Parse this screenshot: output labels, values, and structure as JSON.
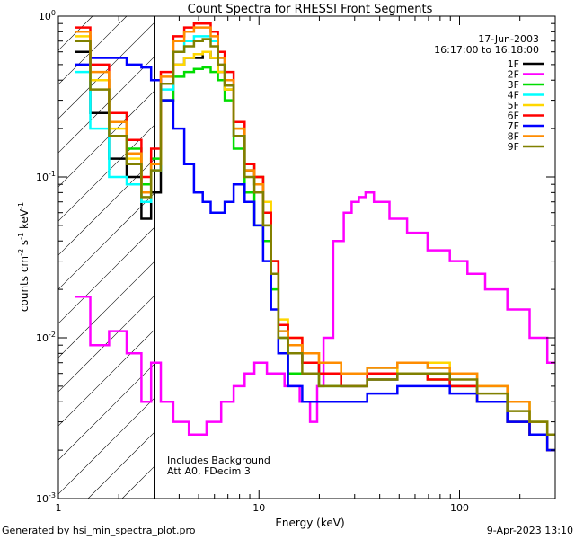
{
  "footer": {
    "generated": "Generated by hsi_min_spectra_plot.pro",
    "timestamp": "9-Apr-2023 13:10"
  },
  "chart_data": {
    "type": "line",
    "title": "Count Spectra for RHESSI Front Segments",
    "xlabel": "Energy (keV)",
    "ylabel_parts": [
      "counts cm",
      "-2",
      " s",
      "-1",
      " keV",
      "-1"
    ],
    "xscale": "log",
    "yscale": "log",
    "xlim": [
      1.0,
      300.0
    ],
    "ylim": [
      0.001,
      1.0
    ],
    "x_ticks": [
      {
        "v": 1,
        "label": "1"
      },
      {
        "v": 10,
        "label": "10"
      },
      {
        "v": 100,
        "label": "100"
      }
    ],
    "y_ticks": [
      {
        "v": 0.001,
        "label": "10",
        "exp": "-3"
      },
      {
        "v": 0.01,
        "label": "10",
        "exp": "-2"
      },
      {
        "v": 0.1,
        "label": "10",
        "exp": "-1"
      },
      {
        "v": 1,
        "label": "10",
        "exp": "0"
      }
    ],
    "annotations": {
      "date": "17-Jun-2003",
      "time_range": "16:17:00 to 16:18:00",
      "background_note": "Includes Background",
      "atten_note": "Att A0, FDecim 3"
    },
    "hatched_region_max_energy": 3.0,
    "legend_position": "top-right",
    "series": [
      {
        "name": "1F",
        "color": "#000000",
        "x": [
          1.3,
          1.6,
          2.0,
          2.4,
          2.8,
          3.0,
          3.5,
          4.0,
          4.5,
          5.0,
          5.5,
          6.0,
          6.5,
          7.0,
          8.0,
          9.0,
          10,
          11,
          12,
          13,
          15,
          18,
          22,
          30,
          40,
          60,
          80,
          100,
          150,
          200,
          250,
          300
        ],
        "y": [
          0.6,
          0.25,
          0.13,
          0.1,
          0.055,
          0.08,
          0.3,
          0.5,
          0.55,
          0.55,
          0.6,
          0.55,
          0.45,
          0.35,
          0.18,
          0.11,
          0.1,
          0.06,
          0.03,
          0.012,
          0.009,
          0.007,
          0.006,
          0.005,
          0.0055,
          0.006,
          0.006,
          0.005,
          0.004,
          0.003,
          0.0025,
          0.002
        ]
      },
      {
        "name": "2F",
        "color": "#ff00ff",
        "x": [
          1.3,
          1.6,
          2.0,
          2.4,
          2.8,
          3.0,
          3.5,
          4.0,
          5.0,
          6.0,
          7.0,
          8.0,
          9.0,
          10,
          12,
          15,
          17,
          19,
          20,
          22,
          25,
          28,
          30,
          33,
          35,
          40,
          50,
          60,
          80,
          100,
          120,
          150,
          200,
          250,
          300
        ],
        "y": [
          0.018,
          0.009,
          0.011,
          0.008,
          0.004,
          0.007,
          0.004,
          0.003,
          0.0025,
          0.003,
          0.004,
          0.005,
          0.006,
          0.007,
          0.006,
          0.005,
          0.004,
          0.003,
          0.005,
          0.01,
          0.04,
          0.06,
          0.07,
          0.075,
          0.08,
          0.07,
          0.055,
          0.045,
          0.035,
          0.03,
          0.025,
          0.02,
          0.015,
          0.01,
          0.007
        ]
      },
      {
        "name": "3F",
        "color": "#00dd00",
        "x": [
          1.3,
          1.6,
          2.0,
          2.4,
          2.8,
          3.0,
          3.5,
          4.0,
          4.5,
          5.0,
          5.5,
          6.0,
          6.5,
          7.0,
          8.0,
          9.0,
          10,
          11,
          12,
          13,
          15,
          18,
          22,
          30,
          40,
          60,
          80,
          100,
          150,
          200,
          250,
          300
        ],
        "y": [
          0.7,
          0.4,
          0.25,
          0.15,
          0.09,
          0.13,
          0.3,
          0.42,
          0.45,
          0.47,
          0.48,
          0.45,
          0.4,
          0.3,
          0.15,
          0.08,
          0.05,
          0.04,
          0.02,
          0.01,
          0.006,
          0.006,
          0.005,
          0.005,
          0.006,
          0.006,
          0.0055,
          0.005,
          0.004,
          0.003,
          0.0025,
          0.002
        ]
      },
      {
        "name": "4F",
        "color": "#00ffff",
        "x": [
          1.3,
          1.6,
          2.0,
          2.4,
          2.8,
          3.0,
          3.5,
          4.0,
          4.5,
          5.0,
          5.5,
          6.0,
          6.5,
          7.0,
          8.0,
          9.0,
          10,
          11,
          12,
          13,
          15,
          18,
          22,
          30,
          40,
          60,
          80,
          100,
          150,
          200,
          250,
          300
        ],
        "y": [
          0.45,
          0.2,
          0.1,
          0.09,
          0.07,
          0.11,
          0.35,
          0.6,
          0.7,
          0.75,
          0.75,
          0.7,
          0.55,
          0.4,
          0.2,
          0.12,
          0.09,
          0.05,
          0.025,
          0.011,
          0.008,
          0.007,
          0.006,
          0.006,
          0.0065,
          0.007,
          0.0065,
          0.006,
          0.005,
          0.004,
          0.003,
          0.0025
        ]
      },
      {
        "name": "5F",
        "color": "#ffd700",
        "x": [
          1.3,
          1.6,
          2.0,
          2.4,
          2.8,
          3.0,
          3.5,
          4.0,
          4.5,
          5.0,
          5.5,
          6.0,
          6.5,
          7.0,
          8.0,
          9.0,
          10,
          11,
          12,
          13,
          15,
          18,
          22,
          30,
          40,
          60,
          80,
          100,
          150,
          200,
          250,
          300
        ],
        "y": [
          0.75,
          0.4,
          0.2,
          0.13,
          0.08,
          0.12,
          0.38,
          0.5,
          0.55,
          0.58,
          0.6,
          0.55,
          0.45,
          0.35,
          0.2,
          0.12,
          0.1,
          0.07,
          0.03,
          0.013,
          0.01,
          0.008,
          0.007,
          0.006,
          0.006,
          0.007,
          0.007,
          0.006,
          0.005,
          0.004,
          0.003,
          0.0025
        ]
      },
      {
        "name": "6F",
        "color": "#ff0000",
        "x": [
          1.3,
          1.6,
          2.0,
          2.4,
          2.8,
          3.0,
          3.5,
          4.0,
          4.5,
          5.0,
          5.5,
          6.0,
          6.5,
          7.0,
          8.0,
          9.0,
          10,
          11,
          12,
          13,
          15,
          18,
          22,
          30,
          40,
          60,
          80,
          100,
          150,
          200,
          250,
          300
        ],
        "y": [
          0.85,
          0.5,
          0.25,
          0.17,
          0.1,
          0.15,
          0.45,
          0.75,
          0.85,
          0.9,
          0.9,
          0.8,
          0.6,
          0.45,
          0.22,
          0.12,
          0.1,
          0.06,
          0.03,
          0.012,
          0.01,
          0.007,
          0.006,
          0.005,
          0.006,
          0.006,
          0.0055,
          0.005,
          0.004,
          0.003,
          0.0025,
          0.002
        ]
      },
      {
        "name": "7F",
        "color": "#0000ff",
        "x": [
          1.3,
          1.6,
          2.0,
          2.4,
          2.8,
          3.0,
          3.5,
          4.0,
          4.5,
          5.0,
          5.5,
          6.0,
          6.5,
          7.0,
          8.0,
          9.0,
          10,
          11,
          12,
          13,
          15,
          18,
          22,
          30,
          40,
          60,
          80,
          100,
          150,
          200,
          250,
          300
        ],
        "y": [
          0.5,
          0.55,
          0.55,
          0.5,
          0.48,
          0.4,
          0.3,
          0.2,
          0.12,
          0.08,
          0.07,
          0.06,
          0.06,
          0.07,
          0.09,
          0.07,
          0.05,
          0.03,
          0.015,
          0.008,
          0.005,
          0.004,
          0.004,
          0.004,
          0.0045,
          0.005,
          0.005,
          0.0045,
          0.004,
          0.003,
          0.0025,
          0.002
        ]
      },
      {
        "name": "8F",
        "color": "#ff8c00",
        "x": [
          1.3,
          1.6,
          2.0,
          2.4,
          2.8,
          3.0,
          3.5,
          4.0,
          4.5,
          5.0,
          5.5,
          6.0,
          6.5,
          7.0,
          8.0,
          9.0,
          10,
          11,
          12,
          13,
          15,
          18,
          22,
          30,
          40,
          60,
          80,
          100,
          150,
          200,
          250,
          300
        ],
        "y": [
          0.8,
          0.45,
          0.22,
          0.14,
          0.08,
          0.12,
          0.42,
          0.7,
          0.8,
          0.85,
          0.85,
          0.75,
          0.55,
          0.4,
          0.2,
          0.11,
          0.09,
          0.05,
          0.025,
          0.011,
          0.009,
          0.008,
          0.007,
          0.006,
          0.0065,
          0.007,
          0.0065,
          0.006,
          0.005,
          0.004,
          0.003,
          0.0025
        ]
      },
      {
        "name": "9F",
        "color": "#808000",
        "x": [
          1.3,
          1.6,
          2.0,
          2.4,
          2.8,
          3.0,
          3.5,
          4.0,
          4.5,
          5.0,
          5.5,
          6.0,
          6.5,
          7.0,
          8.0,
          9.0,
          10,
          11,
          12,
          13,
          15,
          18,
          22,
          30,
          40,
          60,
          80,
          100,
          150,
          200,
          250,
          300
        ],
        "y": [
          0.7,
          0.35,
          0.18,
          0.12,
          0.075,
          0.11,
          0.38,
          0.6,
          0.65,
          0.7,
          0.72,
          0.65,
          0.5,
          0.37,
          0.18,
          0.1,
          0.08,
          0.05,
          0.025,
          0.01,
          0.008,
          0.006,
          0.005,
          0.005,
          0.0055,
          0.006,
          0.006,
          0.0055,
          0.0045,
          0.0035,
          0.003,
          0.0025
        ]
      }
    ]
  }
}
